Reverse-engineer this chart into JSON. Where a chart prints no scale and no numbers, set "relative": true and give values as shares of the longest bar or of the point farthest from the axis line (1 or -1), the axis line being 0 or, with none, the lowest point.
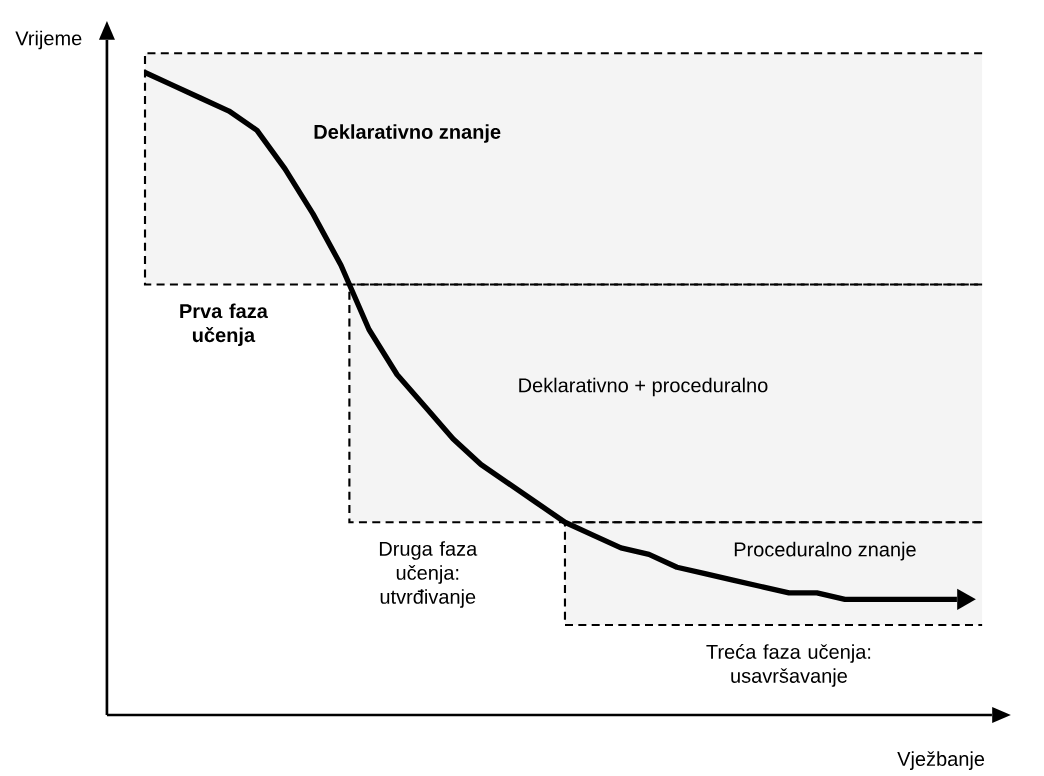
{
  "chart_data": {
    "type": "line",
    "relative": true,
    "xlabel": "Vježbanje",
    "ylabel": "Vrijeme",
    "categories": [
      null,
      null,
      null,
      null,
      null,
      null,
      null,
      null,
      null,
      null,
      null,
      null,
      null,
      null,
      null,
      null,
      null,
      null,
      null,
      null,
      null,
      null,
      null,
      null,
      null,
      null,
      null,
      null,
      null,
      null
    ],
    "series": [
      {
        "color": "#000000",
        "values": [
          1.0,
          0.98,
          0.96,
          0.94,
          0.91,
          0.85,
          0.78,
          0.7,
          0.6,
          0.53,
          0.48,
          0.43,
          0.39,
          0.36,
          0.33,
          0.3,
          0.28,
          0.26,
          0.25,
          0.23,
          0.22,
          0.21,
          0.2,
          0.19,
          0.19,
          0.18,
          0.18,
          0.18,
          0.18,
          0.18
        ]
      }
    ],
    "bands": [
      {
        "axis": "y",
        "from": 0.67,
        "to": 1.03,
        "label": "Deklarativno znanje",
        "color": "#f4f4f4"
      },
      {
        "axis": "y",
        "from": 0.3,
        "to": 0.67,
        "label": "Deklarativno + proceduralno",
        "color": "#f4f4f4"
      },
      {
        "axis": "y",
        "from": 0.14,
        "to": 0.3,
        "label": "Proceduralno znanje",
        "color": "#f4f4f4"
      }
    ],
    "annotations": [
      "Prva faza učenja",
      "Druga faza učenja: utvrđivanje",
      "Treća faza učenja: usavršavanje"
    ],
    "marker": "none",
    "line_style": "solid"
  }
}
